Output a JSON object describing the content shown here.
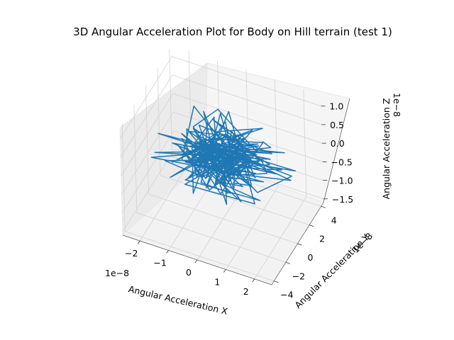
{
  "chart_data": {
    "type": "line3d",
    "title": "3D Angular Acceleration Plot for Body on Hill terrain (test 1)",
    "xlabel": "Angular Acceleration X",
    "ylabel": "Angular Acceleration Y",
    "zlabel": "Angular Acceleration Z",
    "x_offset_text": "1e−8",
    "y_offset_text": "1e−8",
    "z_offset_text": "1e−8",
    "xlim": [
      -2.6,
      2.6
    ],
    "ylim": [
      -4.4,
      4.4
    ],
    "zlim": [
      -1.6,
      1.3
    ],
    "x_ticks": [
      -2,
      -1,
      0,
      1,
      2
    ],
    "x_tick_labels": [
      "−2",
      "−1",
      "0",
      "1",
      "2"
    ],
    "y_ticks": [
      -4,
      -2,
      0,
      2,
      4
    ],
    "y_tick_labels": [
      "−4",
      "−2",
      "0",
      "2",
      "4"
    ],
    "z_ticks": [
      -1.5,
      -1.0,
      -0.5,
      0.0,
      0.5,
      1.0
    ],
    "z_tick_labels": [
      "−1.5",
      "−1.0",
      "−0.5",
      "0.0",
      "0.5",
      "1.0"
    ],
    "grid": true,
    "series": [
      {
        "color": "#1f77b4",
        "num_points": 220,
        "x_std": 0.85,
        "y_std": 1.2,
        "z_std": 0.35,
        "seed": 7
      }
    ]
  }
}
